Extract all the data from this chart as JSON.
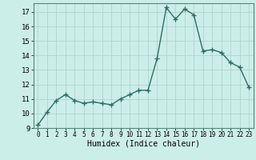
{
  "x": [
    0,
    1,
    2,
    3,
    4,
    5,
    6,
    7,
    8,
    9,
    10,
    11,
    12,
    13,
    14,
    15,
    16,
    17,
    18,
    19,
    20,
    21,
    22,
    23
  ],
  "y": [
    9.2,
    10.1,
    10.9,
    11.3,
    10.9,
    10.7,
    10.8,
    10.7,
    10.6,
    11.0,
    11.3,
    11.6,
    11.6,
    13.8,
    17.3,
    16.5,
    17.2,
    16.8,
    14.3,
    14.4,
    14.2,
    13.5,
    13.2,
    11.8
  ],
  "xlabel": "Humidex (Indice chaleur)",
  "ylim": [
    9,
    17.6
  ],
  "xlim": [
    -0.5,
    23.5
  ],
  "yticks": [
    9,
    10,
    11,
    12,
    13,
    14,
    15,
    16,
    17
  ],
  "xticks": [
    0,
    1,
    2,
    3,
    4,
    5,
    6,
    7,
    8,
    9,
    10,
    11,
    12,
    13,
    14,
    15,
    16,
    17,
    18,
    19,
    20,
    21,
    22,
    23
  ],
  "xtick_labels": [
    "0",
    "1",
    "2",
    "3",
    "4",
    "5",
    "6",
    "7",
    "8",
    "9",
    "10",
    "11",
    "12",
    "13",
    "14",
    "15",
    "16",
    "17",
    "18",
    "19",
    "20",
    "21",
    "22",
    "23"
  ],
  "line_color": "#2d6e65",
  "marker": "+",
  "marker_size": 4,
  "marker_lw": 1.0,
  "linewidth": 1.0,
  "bg_color": "#cceee8",
  "grid_color": "#b0d4cc",
  "grid_lw": 0.6,
  "xlabel_fontsize": 7,
  "ytick_fontsize": 6.5,
  "xtick_fontsize": 5.5
}
